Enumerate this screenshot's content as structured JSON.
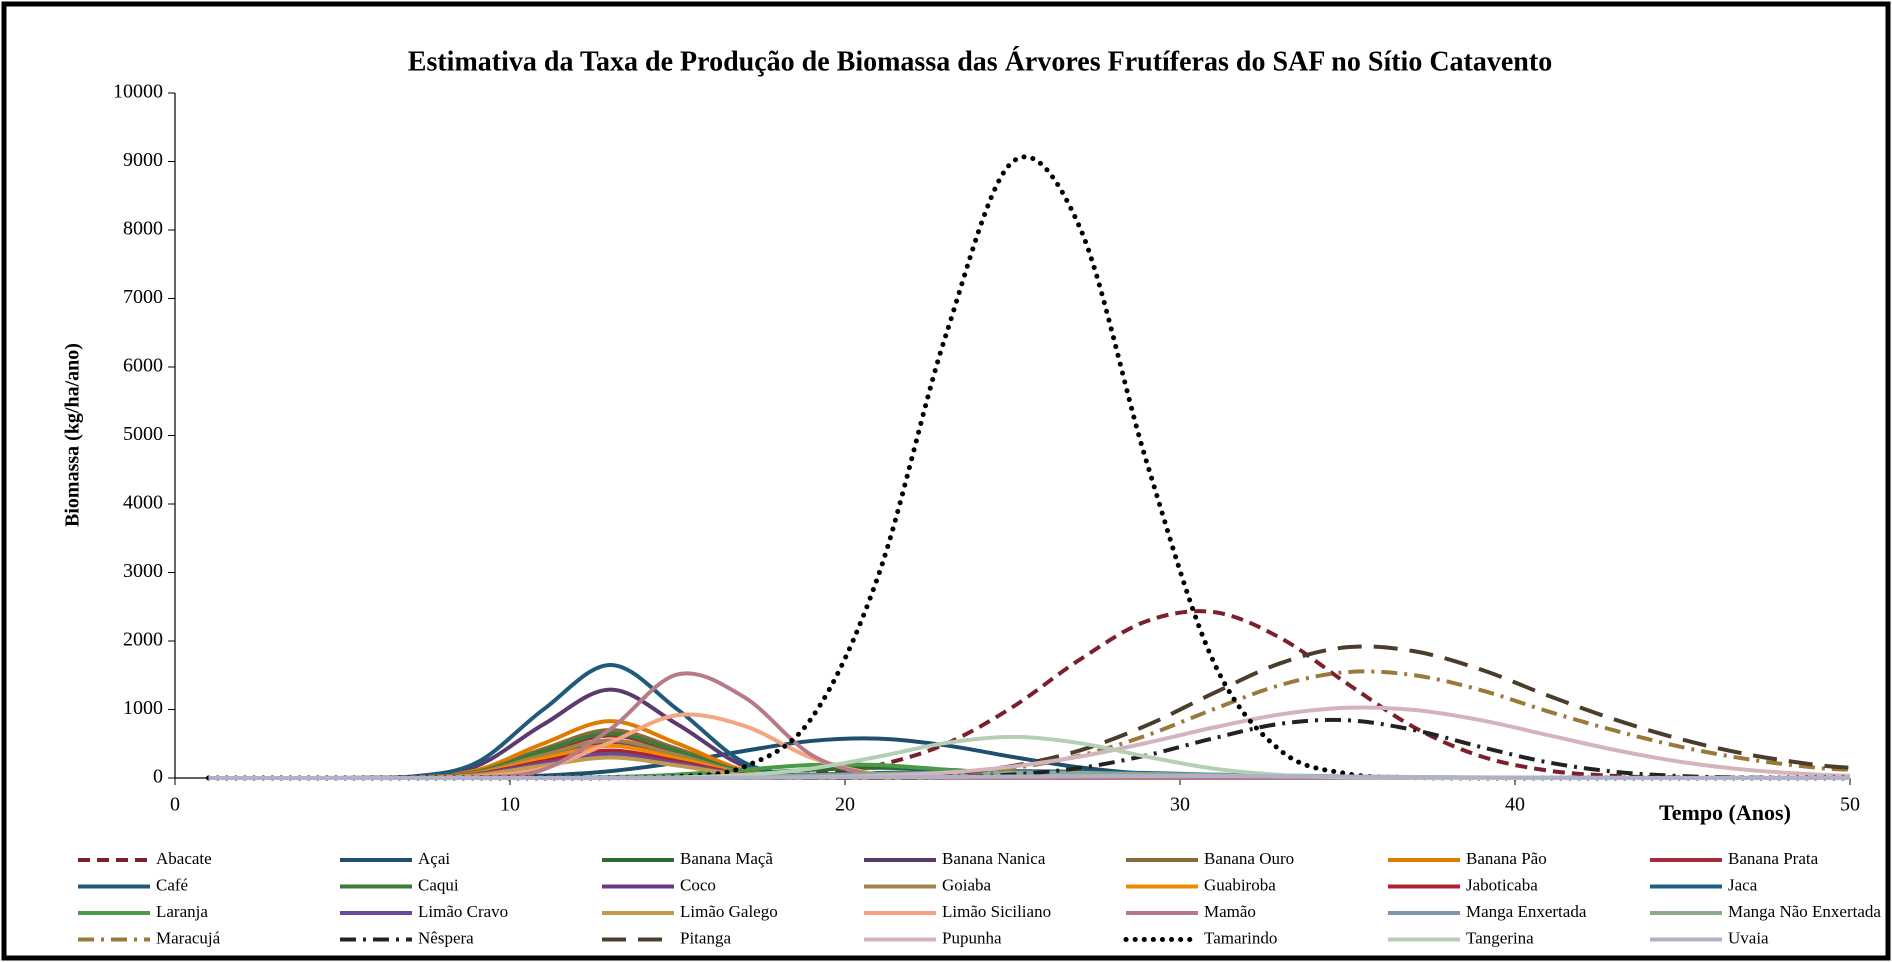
{
  "chart_data": {
    "type": "line",
    "title": "Estimativa da Taxa de Produção de Biomassa das Árvores Frutíferas do SAF no Sítio Catavento",
    "y_label": "Biomassa (kg/ha/ano)",
    "x_label": "Tempo (Anos)",
    "xlim": [
      0,
      50
    ],
    "xticks": [
      0,
      10,
      20,
      30,
      40,
      50
    ],
    "ylim": [
      0,
      10000
    ],
    "yticks": [
      0,
      1000,
      2000,
      3000,
      4000,
      5000,
      6000,
      7000,
      8000,
      9000,
      10000
    ],
    "legend": "bottom",
    "x": [
      1,
      3,
      5,
      7,
      9,
      11,
      13,
      15,
      17,
      19,
      21,
      23,
      25,
      27,
      29,
      31,
      33,
      35,
      37,
      39,
      41,
      43,
      45,
      47,
      49,
      50
    ],
    "series": [
      {
        "name": "Abacate",
        "color": "#7b1f2c",
        "line_style": "dashed",
        "values": [
          0,
          0,
          0,
          0,
          0,
          0,
          1,
          4,
          14,
          58,
          189,
          496,
          1035,
          1725,
          2289,
          2423,
          2044,
          1375,
          737,
          314,
          108,
          29,
          6,
          0,
          0,
          0
        ]
      },
      {
        "name": "Açai",
        "color": "#1f4e6e",
        "line_style": "solid",
        "values": [
          0,
          0,
          0,
          2,
          9,
          35,
          100,
          226,
          396,
          541,
          575,
          477,
          308,
          155,
          60,
          19,
          4,
          1,
          0,
          0,
          0,
          0,
          0,
          0,
          0,
          0
        ]
      },
      {
        "name": "Banana Maçã",
        "color": "#2e6b2e",
        "line_style": "solid",
        "values": [
          0,
          0,
          0,
          0,
          0,
          1,
          4,
          20,
          62,
          120,
          150,
          120,
          62,
          20,
          4,
          1,
          0,
          0,
          0,
          0,
          0,
          0,
          0,
          0,
          0,
          0
        ]
      },
      {
        "name": "Banana Nanica",
        "color": "#5b3a6e",
        "line_style": "solid",
        "values": [
          0,
          0,
          0,
          14,
          174,
          783,
          1290,
          783,
          174,
          14,
          0,
          0,
          0,
          0,
          0,
          0,
          0,
          0,
          0,
          0,
          0,
          0,
          0,
          0,
          0,
          0
        ]
      },
      {
        "name": "Banana  Ouro",
        "color": "#8b6a3a",
        "line_style": "solid",
        "values": [
          0,
          0,
          0,
          8,
          95,
          425,
          700,
          425,
          95,
          8,
          0,
          0,
          0,
          0,
          0,
          0,
          0,
          0,
          0,
          0,
          0,
          0,
          0,
          0,
          0,
          0
        ]
      },
      {
        "name": "Banana Pão",
        "color": "#e07b00",
        "line_style": "solid",
        "values": [
          0,
          0,
          0,
          9,
          112,
          504,
          830,
          504,
          112,
          9,
          0,
          0,
          0,
          0,
          0,
          0,
          0,
          0,
          0,
          0,
          0,
          0,
          0,
          0,
          0,
          0
        ]
      },
      {
        "name": "Banana Prata",
        "color": "#a52a3a",
        "line_style": "solid",
        "values": [
          0,
          0,
          0,
          7,
          84,
          376,
          620,
          376,
          84,
          7,
          0,
          0,
          0,
          0,
          0,
          0,
          0,
          0,
          0,
          0,
          0,
          0,
          0,
          0,
          0,
          0
        ]
      },
      {
        "name": "Café",
        "color": "#1f5a7a",
        "line_style": "solid",
        "values": [
          0,
          0,
          1,
          18,
          223,
          1001,
          1650,
          1001,
          223,
          18,
          1,
          0,
          0,
          0,
          0,
          0,
          0,
          0,
          0,
          0,
          0,
          0,
          0,
          0,
          0,
          0
        ]
      },
      {
        "name": "Caqui",
        "color": "#3a7a3a",
        "line_style": "solid",
        "values": [
          0,
          0,
          0,
          7,
          88,
          395,
          650,
          395,
          88,
          7,
          0,
          0,
          0,
          0,
          0,
          0,
          0,
          0,
          0,
          0,
          0,
          0,
          0,
          0,
          0,
          0
        ]
      },
      {
        "name": "Coco",
        "color": "#6a3a8a",
        "line_style": "solid",
        "values": [
          0,
          0,
          0,
          6,
          68,
          304,
          500,
          304,
          68,
          6,
          0,
          0,
          0,
          0,
          0,
          0,
          0,
          0,
          0,
          0,
          0,
          0,
          0,
          0,
          0,
          0
        ]
      },
      {
        "name": "Goiaba",
        "color": "#a0824a",
        "line_style": "solid",
        "values": [
          0,
          0,
          0,
          6,
          74,
          334,
          550,
          334,
          74,
          6,
          0,
          0,
          0,
          0,
          0,
          0,
          0,
          0,
          0,
          0,
          0,
          0,
          0,
          0,
          0,
          0
        ]
      },
      {
        "name": "Guabiroba",
        "color": "#f08a00",
        "line_style": "solid",
        "values": [
          0,
          0,
          0,
          5,
          63,
          285,
          470,
          285,
          63,
          5,
          0,
          0,
          0,
          0,
          0,
          0,
          0,
          0,
          0,
          0,
          0,
          0,
          0,
          0,
          0,
          0
        ]
      },
      {
        "name": "Jaboticaba",
        "color": "#b02030",
        "line_style": "solid",
        "values": [
          0,
          0,
          0,
          4,
          54,
          243,
          400,
          243,
          54,
          4,
          0,
          0,
          0,
          0,
          0,
          0,
          0,
          0,
          0,
          0,
          0,
          0,
          0,
          0,
          0,
          0
        ]
      },
      {
        "name": "Jaca",
        "color": "#1f5f8a",
        "line_style": "solid",
        "values": [
          0,
          0,
          0,
          0,
          1,
          2,
          6,
          14,
          28,
          49,
          73,
          92,
          100,
          92,
          73,
          49,
          28,
          14,
          6,
          2,
          1,
          0,
          0,
          0,
          0,
          0
        ]
      },
      {
        "name": "Laranja",
        "color": "#4a9a4a",
        "line_style": "solid",
        "values": [
          0,
          0,
          0,
          0,
          0,
          2,
          13,
          50,
          121,
          189,
          189,
          121,
          50,
          13,
          2,
          0,
          0,
          0,
          0,
          0,
          0,
          0,
          0,
          0,
          0,
          0
        ]
      },
      {
        "name": "Limão Cravo",
        "color": "#6a4a9a",
        "line_style": "solid",
        "values": [
          0,
          0,
          0,
          4,
          47,
          212,
          350,
          212,
          47,
          4,
          0,
          0,
          0,
          0,
          0,
          0,
          0,
          0,
          0,
          0,
          0,
          0,
          0,
          0,
          0,
          0
        ]
      },
      {
        "name": "Limão Galego",
        "color": "#c09a50",
        "line_style": "solid",
        "values": [
          0,
          0,
          0,
          3,
          41,
          182,
          300,
          182,
          41,
          3,
          0,
          0,
          0,
          0,
          0,
          0,
          0,
          0,
          0,
          0,
          0,
          0,
          0,
          0,
          0,
          0
        ]
      },
      {
        "name": "Limão Siciliano",
        "color": "#f4a582",
        "line_style": "solid",
        "values": [
          0,
          0,
          0,
          1,
          17,
          139,
          521,
          918,
          760,
          295,
          54,
          5,
          0,
          0,
          0,
          0,
          0,
          0,
          0,
          0,
          0,
          0,
          0,
          0,
          0,
          0
        ]
      },
      {
        "name": "Mamão",
        "color": "#b87a86",
        "line_style": "solid",
        "values": [
          0,
          0,
          0,
          0,
          8,
          124,
          715,
          1512,
          1178,
          337,
          36,
          1,
          0,
          0,
          0,
          0,
          0,
          0,
          0,
          0,
          0,
          0,
          0,
          0,
          0,
          0
        ]
      },
      {
        "name": "Manga Enxertada",
        "color": "#7a96b0",
        "line_style": "solid",
        "values": [
          0,
          0,
          0,
          0,
          0,
          0,
          1,
          2,
          5,
          12,
          23,
          36,
          50,
          59,
          59,
          50,
          36,
          23,
          12,
          5,
          2,
          1,
          0,
          0,
          0,
          0
        ]
      },
      {
        "name": "Manga Não Enxertada",
        "color": "#8aaa8a",
        "line_style": "solid",
        "values": [
          0,
          0,
          0,
          0,
          0,
          2,
          5,
          11,
          22,
          39,
          58,
          74,
          80,
          74,
          58,
          39,
          22,
          11,
          5,
          2,
          0,
          0,
          0,
          0,
          0,
          0
        ]
      },
      {
        "name": "Maracujá",
        "color": "#9a7a3a",
        "line_style": "dashdot",
        "values": [
          0,
          0,
          0,
          0,
          0,
          0,
          0,
          0,
          1,
          4,
          16,
          53,
          143,
          325,
          621,
          1003,
          1358,
          1547,
          1500,
          1280,
          970,
          690,
          450,
          270,
          150,
          120
        ]
      },
      {
        "name": "Nêspera",
        "color": "#222222",
        "line_style": "dashdot",
        "values": [
          0,
          0,
          0,
          0,
          0,
          0,
          0,
          0,
          0,
          0,
          3,
          14,
          51,
          146,
          330,
          580,
          792,
          843,
          699,
          451,
          227,
          89,
          27,
          6,
          1,
          0
        ]
      },
      {
        "name": "Pitanga",
        "color": "#4a3e2a",
        "line_style": "longdash",
        "values": [
          0,
          0,
          0,
          0,
          0,
          0,
          0,
          0,
          1,
          5,
          20,
          65,
          176,
          401,
          767,
          1238,
          1676,
          1910,
          1850,
          1580,
          1200,
          850,
          560,
          340,
          190,
          150
        ]
      },
      {
        "name": "Pupunha",
        "color": "#d4b4bc",
        "line_style": "solid",
        "values": [
          0,
          0,
          0,
          0,
          0,
          0,
          0,
          1,
          4,
          11,
          32,
          78,
          167,
          312,
          512,
          737,
          929,
          1026,
          992,
          842,
          625,
          407,
          232,
          116,
          51,
          32
        ]
      },
      {
        "name": "Tamarindo",
        "color": "#000000",
        "line_style": "dotted",
        "values": [
          0,
          0,
          0,
          0,
          0,
          0,
          2,
          20,
          165,
          872,
          2963,
          6448,
          8994,
          8048,
          4620,
          1699,
          401,
          61,
          6,
          0,
          0,
          0,
          0,
          0,
          0,
          0
        ]
      },
      {
        "name": "Tangerina",
        "color": "#b4d0b4",
        "line_style": "solid",
        "values": [
          0,
          0,
          0,
          0,
          0,
          0,
          2,
          10,
          44,
          138,
          312,
          510,
          600,
          510,
          312,
          138,
          44,
          10,
          2,
          0,
          0,
          0,
          0,
          0,
          0,
          0
        ]
      },
      {
        "name": "Uvaia",
        "color": "#b0b0c8",
        "line_style": "solid",
        "values": [
          0,
          0,
          0,
          0,
          0,
          0,
          0,
          1,
          3,
          6,
          10,
          15,
          21,
          26,
          30,
          30,
          26,
          21,
          15,
          10,
          6,
          3,
          1,
          1,
          0,
          0
        ]
      }
    ]
  }
}
